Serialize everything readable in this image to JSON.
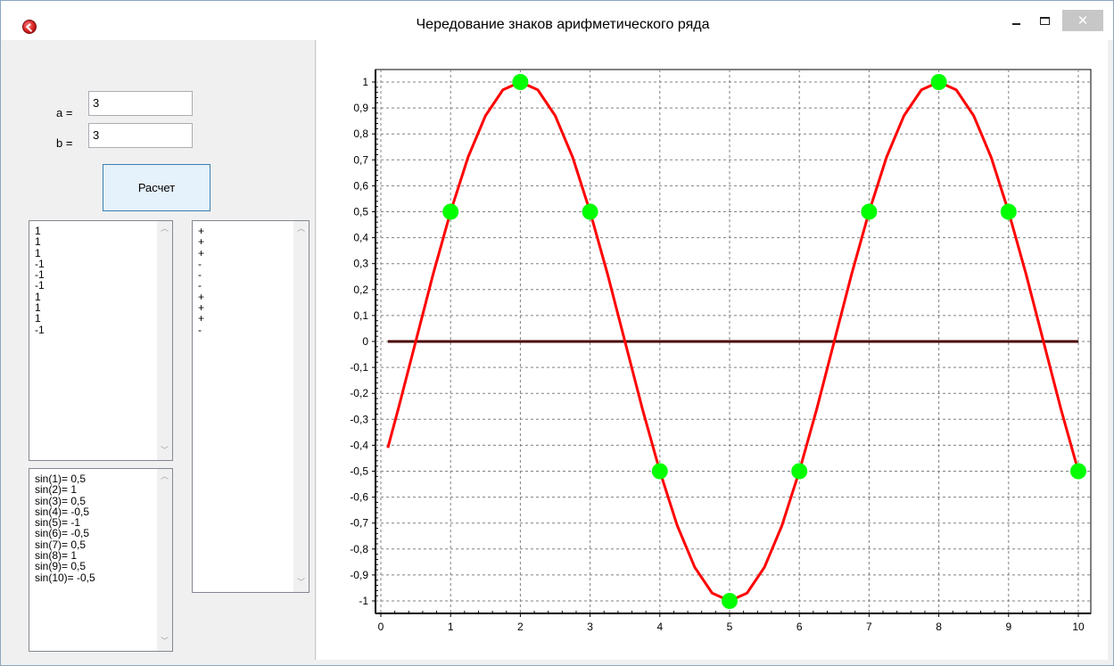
{
  "window": {
    "title": "Чередование знаков арифметического ряда",
    "close_glyph": "✕"
  },
  "inputs": {
    "a_label": "a =",
    "a_value": "3",
    "b_label": "b =",
    "b_value": "3"
  },
  "calc_button_label": "Расчет",
  "list_values": [
    "1",
    "1",
    "1",
    "-1",
    "-1",
    "-1",
    "1",
    "1",
    "1",
    "-1"
  ],
  "list_signs": [
    "+",
    "+",
    "+",
    "-",
    "-",
    "-",
    "+",
    "+",
    "+",
    "-"
  ],
  "list_sin": [
    "sin(1)= 0,5",
    "sin(2)= 1",
    "sin(3)= 0,5",
    "sin(4)= -0,5",
    "sin(5)= -1",
    "sin(6)= -0,5",
    "sin(7)= 0,5",
    "sin(8)= 1",
    "sin(9)= 0,5",
    "sin(10)= -0,5"
  ],
  "colors": {
    "curve": "#ff0000",
    "points": "#00ff00",
    "zero_line": "#4a0000",
    "grid": "#808080"
  },
  "chart_data": {
    "type": "line",
    "xlim": [
      0,
      10
    ],
    "ylim": [
      -1,
      1
    ],
    "x_ticks": [
      "0",
      "1",
      "2",
      "3",
      "4",
      "5",
      "6",
      "7",
      "8",
      "9",
      "10"
    ],
    "y_ticks": [
      "-1",
      "-0,9",
      "-0,8",
      "-0,7",
      "-0,6",
      "-0,5",
      "-0,4",
      "-0,3",
      "-0,2",
      "-0,1",
      "0",
      "0,1",
      "0,2",
      "0,3",
      "0,4",
      "0,5",
      "0,6",
      "0,7",
      "0,8",
      "0,9",
      "1"
    ],
    "grid": true,
    "series": [
      {
        "kind": "curve",
        "x": [
          0.1,
          0.25,
          0.5,
          0.75,
          1,
          1.25,
          1.5,
          1.75,
          2,
          2.25,
          2.5,
          2.75,
          3,
          3.25,
          3.5,
          3.75,
          4,
          4.25,
          4.5,
          4.75,
          5,
          5.25,
          5.5,
          5.75,
          6,
          6.25,
          6.5,
          6.75,
          7,
          7.25,
          7.5,
          7.75,
          8,
          8.25,
          8.5,
          8.75,
          9,
          9.25,
          9.5,
          9.75,
          10
        ],
        "y": [
          -0.41,
          -0.26,
          0.0,
          0.26,
          0.5,
          0.71,
          0.87,
          0.97,
          1.0,
          0.97,
          0.87,
          0.71,
          0.5,
          0.26,
          0.0,
          -0.26,
          -0.5,
          -0.71,
          -0.87,
          -0.97,
          -1.0,
          -0.97,
          -0.87,
          -0.71,
          -0.5,
          -0.26,
          0.0,
          0.26,
          0.5,
          0.71,
          0.87,
          0.97,
          1.0,
          0.97,
          0.87,
          0.71,
          0.5,
          0.26,
          0.0,
          -0.26,
          -0.5
        ]
      },
      {
        "kind": "points",
        "x": [
          1,
          2,
          3,
          4,
          5,
          6,
          7,
          8,
          9,
          10
        ],
        "y": [
          0.5,
          1,
          0.5,
          -0.5,
          -1,
          -0.5,
          0.5,
          1,
          0.5,
          -0.5
        ]
      },
      {
        "kind": "zero-line",
        "x": [
          0.1,
          10
        ],
        "y": [
          0,
          0
        ]
      }
    ]
  }
}
